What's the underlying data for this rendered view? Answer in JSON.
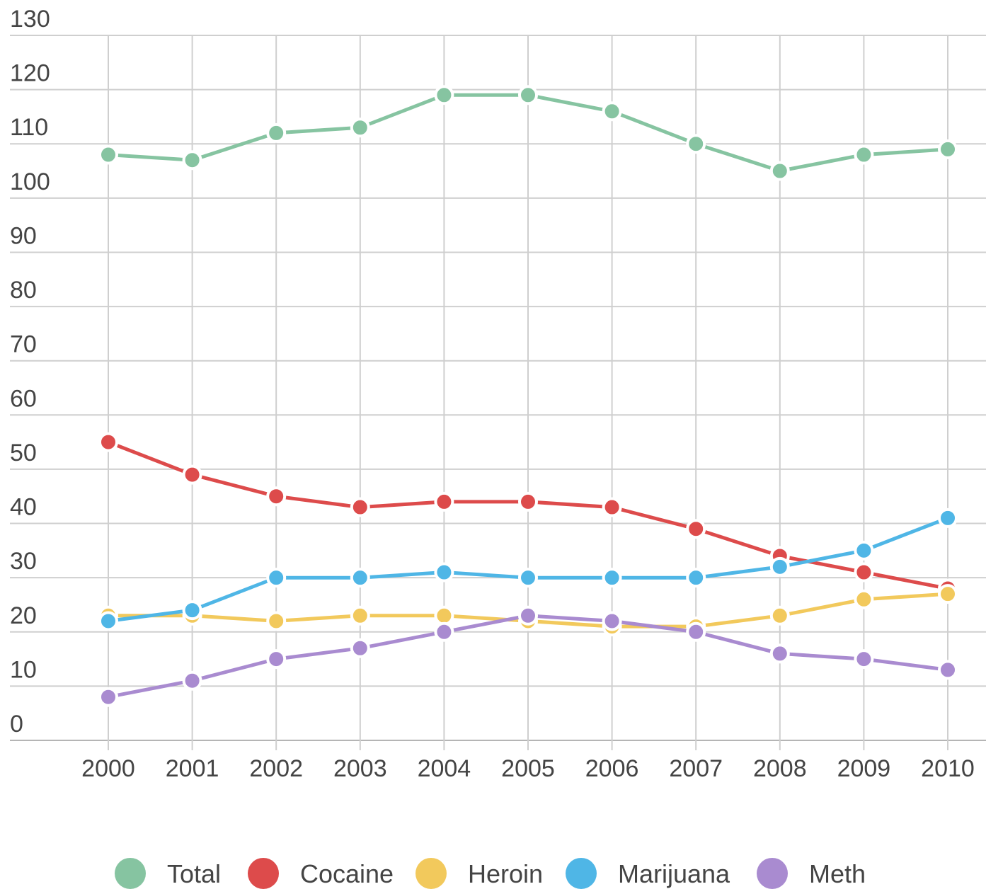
{
  "chart_data": {
    "type": "line",
    "title": "",
    "xlabel": "",
    "ylabel": "",
    "x": [
      "2000",
      "2001",
      "2002",
      "2003",
      "2004",
      "2005",
      "2006",
      "2007",
      "2008",
      "2009",
      "2010"
    ],
    "y_ticks": [
      "0",
      "10",
      "20",
      "30",
      "40",
      "50",
      "60",
      "70",
      "80",
      "90",
      "100",
      "110",
      "120",
      "130"
    ],
    "ylim": [
      0,
      130
    ],
    "grid": true,
    "legend_position": "bottom",
    "series": [
      {
        "name": "Total",
        "color": "#86c4a1",
        "values": [
          108,
          107,
          112,
          113,
          119,
          119,
          116,
          110,
          105,
          108,
          109
        ]
      },
      {
        "name": "Cocaine",
        "color": "#dd4b4b",
        "values": [
          55,
          49,
          45,
          43,
          44,
          44,
          43,
          39,
          34,
          31,
          28
        ]
      },
      {
        "name": "Heroin",
        "color": "#f2c95c",
        "values": [
          23,
          23,
          22,
          23,
          23,
          22,
          21,
          21,
          23,
          26,
          27
        ]
      },
      {
        "name": "Marijuana",
        "color": "#4fb6e6",
        "values": [
          22,
          24,
          30,
          30,
          31,
          30,
          30,
          30,
          32,
          35,
          41
        ]
      },
      {
        "name": "Meth",
        "color": "#a98bd0",
        "values": [
          8,
          11,
          15,
          17,
          20,
          23,
          22,
          20,
          16,
          15,
          13
        ]
      }
    ]
  }
}
